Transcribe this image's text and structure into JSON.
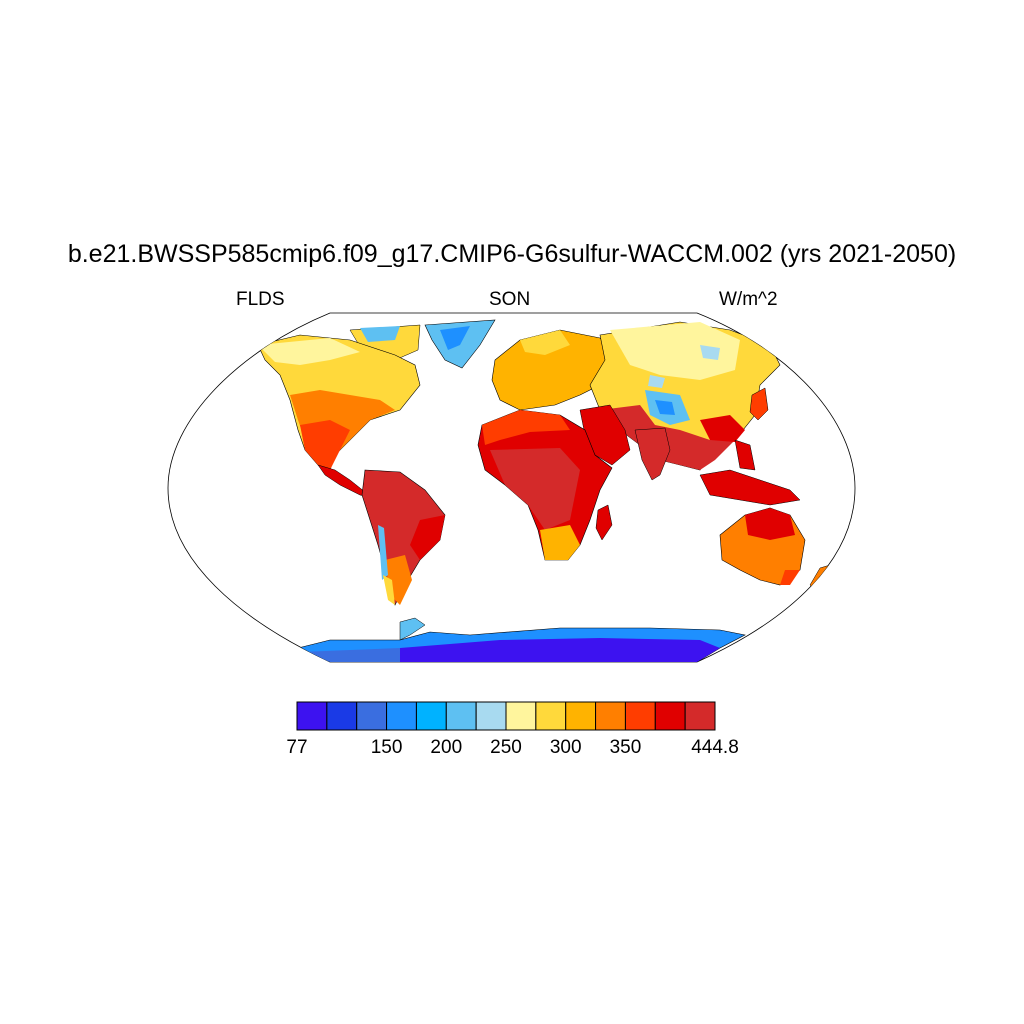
{
  "title": "b.e21.BWSSP585cmip6.f09_g17.CMIP6-G6sulfur-WACCM.002 (yrs 2021-2050)",
  "left_label": "FLDS",
  "center_label": "SON",
  "right_label": "W/m^2",
  "colorbar": {
    "colors": [
      "#3d12f0",
      "#1a3ae6",
      "#3a6ee0",
      "#1e90ff",
      "#00b2ff",
      "#5ec0f2",
      "#a8daf0",
      "#fff59d",
      "#ffd93b",
      "#ffb300",
      "#ff7f00",
      "#ff3d00",
      "#e00000",
      "#d42a2a"
    ],
    "labels": [
      {
        "text": "77",
        "index": 0
      },
      {
        "text": "150",
        "index": 3
      },
      {
        "text": "200",
        "index": 5
      },
      {
        "text": "250",
        "index": 7
      },
      {
        "text": "300",
        "index": 9
      },
      {
        "text": "350",
        "index": 11
      },
      {
        "text": "444.8",
        "index": 14
      }
    ]
  }
}
